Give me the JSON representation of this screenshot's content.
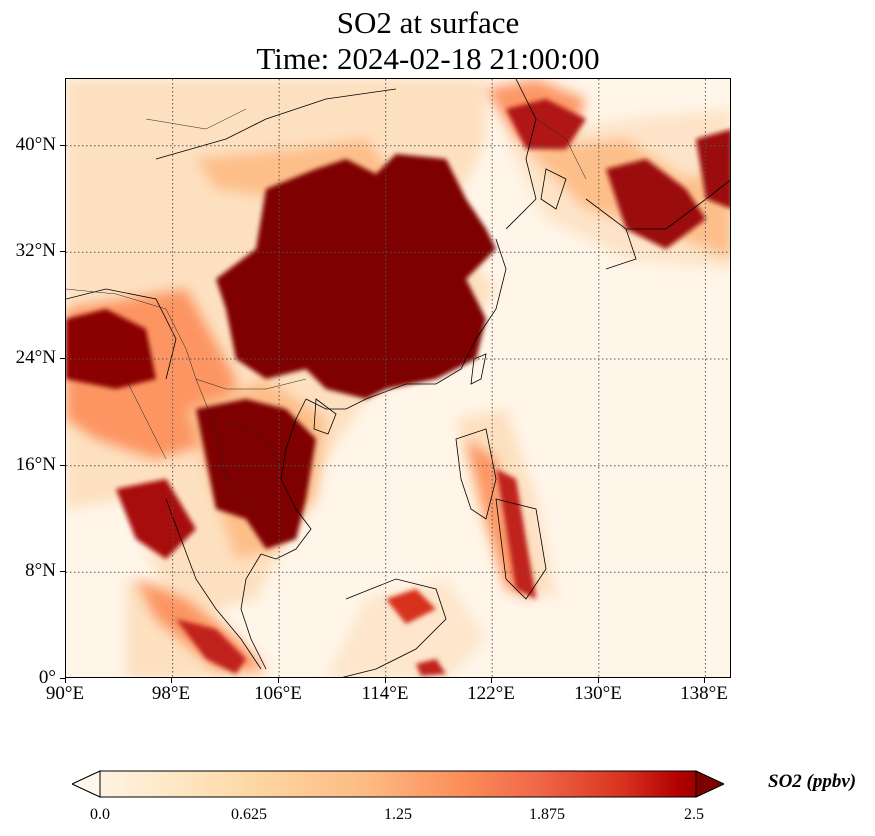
{
  "title": {
    "line1": "SO2 at surface",
    "line2": "Time: 2024-02-18 21:00:00"
  },
  "map": {
    "projection": "PlateCarree",
    "lon_range": [
      90,
      140
    ],
    "lat_range": [
      0,
      45
    ],
    "gridlines": true,
    "gridline_style": "dotted",
    "lon_ticks": [
      "90°E",
      "98°E",
      "106°E",
      "114°E",
      "122°E",
      "130°E",
      "138°E"
    ],
    "lat_ticks": [
      "0°",
      "8°N",
      "16°N",
      "24°N",
      "32°N",
      "40°N"
    ],
    "lon_values": [
      90,
      98,
      106,
      114,
      122,
      130,
      138
    ],
    "lat_values": [
      0,
      8,
      16,
      24,
      32,
      40
    ],
    "field": "SO2 surface concentration",
    "colormap": "OrRd",
    "colors": {
      "low": "#fff7ec",
      "mid_low": "#fdd49e",
      "mid": "#fc8d59",
      "mid_high": "#d7301f",
      "high": "#7f0000"
    }
  },
  "colorbar": {
    "label": "SO2 (ppbv)",
    "ticks": [
      "0.0",
      "0.625",
      "1.25",
      "1.875",
      "2.5"
    ],
    "min": 0.0,
    "max": 2.5,
    "extend": "both"
  }
}
